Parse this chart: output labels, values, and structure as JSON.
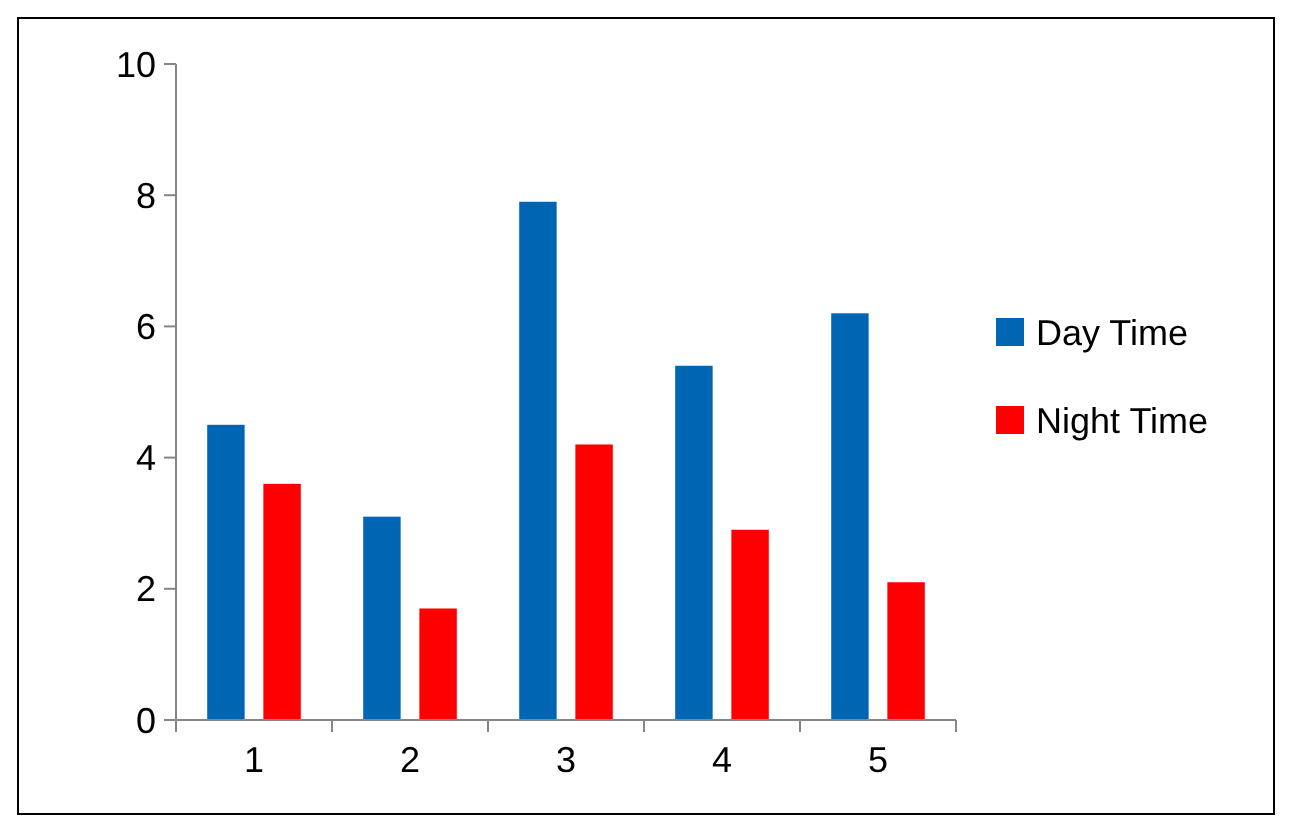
{
  "chart_data": {
    "type": "bar",
    "categories": [
      "1",
      "2",
      "3",
      "4",
      "5"
    ],
    "series": [
      {
        "name": "Day Time",
        "color": "#0066b3",
        "values": [
          4.5,
          3.1,
          7.9,
          5.4,
          6.2
        ]
      },
      {
        "name": "Night Time",
        "color": "#ff0000",
        "values": [
          3.6,
          1.7,
          4.2,
          2.9,
          2.1
        ]
      }
    ],
    "ylim": [
      0,
      10
    ],
    "yticks": [
      0,
      2,
      4,
      6,
      8,
      10
    ],
    "grid": false,
    "legend": "right"
  }
}
